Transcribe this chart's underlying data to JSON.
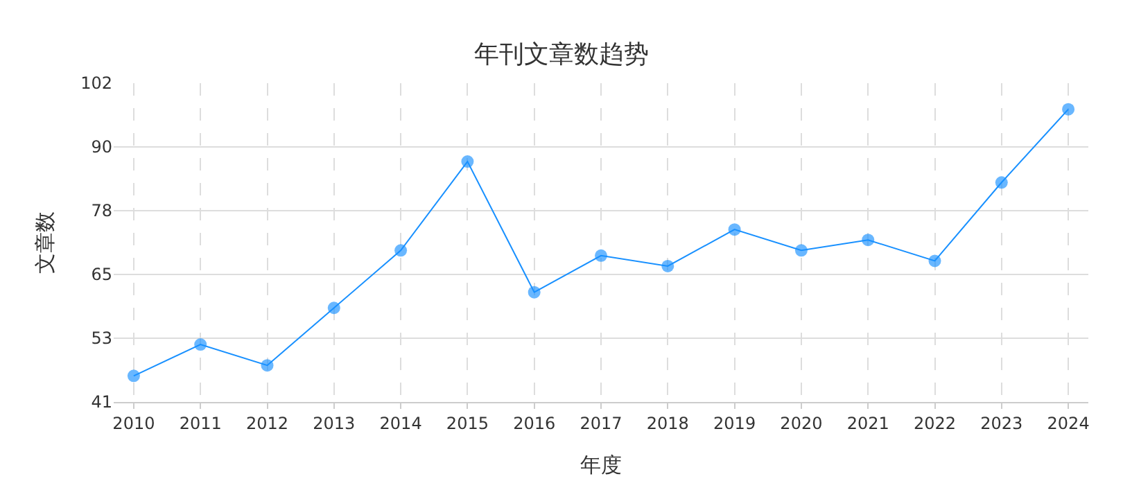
{
  "chart_data": {
    "type": "line",
    "title": "年刊文章数趋势",
    "xlabel": "年度",
    "ylabel": "文章数",
    "categories": [
      "2010",
      "2011",
      "2012",
      "2013",
      "2014",
      "2015",
      "2016",
      "2017",
      "2018",
      "2019",
      "2020",
      "2021",
      "2022",
      "2023",
      "2024"
    ],
    "series": [
      {
        "color": "#1890ff",
        "values": [
          46,
          52,
          48,
          59,
          70,
          87,
          62,
          69,
          67,
          74,
          70,
          72,
          68,
          83,
          97
        ]
      }
    ],
    "ylim": [
      41,
      102
    ],
    "yticks": [
      41,
      {
        "value": 53.2,
        "label": "53"
      },
      {
        "value": 65.4,
        "label": "65"
      },
      {
        "value": 77.6,
        "label": "78"
      },
      {
        "value": 89.8,
        "label": "90"
      },
      102
    ],
    "grid": true,
    "marker": "circle",
    "line_style": "solid"
  }
}
